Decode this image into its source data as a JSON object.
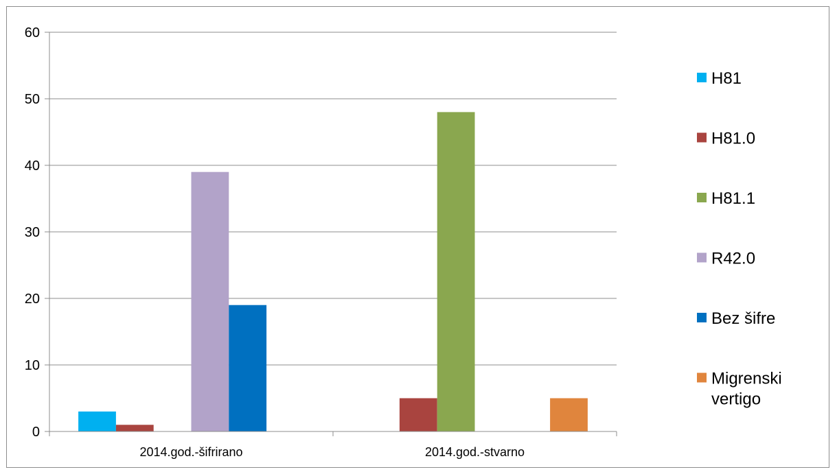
{
  "chart_data": {
    "type": "bar",
    "categories": [
      "2014.god.-šifrirano",
      "2014.god.-stvarno"
    ],
    "series": [
      {
        "name": "H81",
        "color": "#00b0f0",
        "values": [
          3,
          0
        ]
      },
      {
        "name": "H81.0",
        "color": "#a9443f",
        "values": [
          1,
          5
        ]
      },
      {
        "name": "H81.1",
        "color": "#8aa74f",
        "values": [
          0,
          48
        ]
      },
      {
        "name": "R42.0",
        "color": "#b2a3c9",
        "values": [
          39,
          0
        ]
      },
      {
        "name": "Bez šifre",
        "color": "#0070c0",
        "values": [
          19,
          0
        ]
      },
      {
        "name": "Migrenski vertigo",
        "color": "#e0853d",
        "values": [
          0,
          5
        ]
      }
    ],
    "ylim": [
      0,
      60
    ],
    "yticks": [
      "0",
      "10",
      "20",
      "30",
      "40",
      "50",
      "60"
    ],
    "grid": true,
    "legend_position": "right"
  }
}
